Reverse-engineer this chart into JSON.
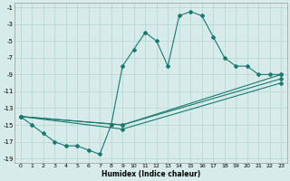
{
  "xlabel": "Humidex (Indice chaleur)",
  "background_color": "#d7ecea",
  "grid_color": "#b8d8d4",
  "line_color": "#1a7a6e",
  "xlim": [
    -0.5,
    23.5
  ],
  "ylim": [
    -19.5,
    -0.5
  ],
  "xticks": [
    0,
    1,
    2,
    3,
    4,
    5,
    6,
    7,
    8,
    9,
    10,
    11,
    12,
    13,
    14,
    15,
    16,
    17,
    18,
    19,
    20,
    21,
    22,
    23
  ],
  "yticks": [
    -19,
    -17,
    -15,
    -13,
    -11,
    -9,
    -7,
    -5,
    -3,
    -1
  ],
  "series_main": {
    "x": [
      0,
      1,
      2,
      3,
      4,
      5,
      6,
      7,
      8,
      9,
      10,
      11,
      12,
      13,
      14,
      15,
      16,
      17,
      18,
      19,
      20,
      21,
      22,
      23
    ],
    "y": [
      -14,
      -15,
      -16,
      -17,
      -17.5,
      -17.5,
      -18,
      -18.5,
      -15,
      -8,
      -6,
      -4,
      -5,
      -8,
      -2,
      -1.5,
      -2,
      -4.5,
      -7,
      -8,
      -8,
      -9,
      -9,
      -9
    ]
  },
  "series_lines": [
    {
      "x": [
        0,
        9,
        23
      ],
      "y": [
        -14,
        -15,
        -9
      ]
    },
    {
      "x": [
        0,
        9,
        23
      ],
      "y": [
        -14,
        -15,
        -9.5
      ]
    },
    {
      "x": [
        0,
        9,
        23
      ],
      "y": [
        -14,
        -15.5,
        -10
      ]
    }
  ]
}
